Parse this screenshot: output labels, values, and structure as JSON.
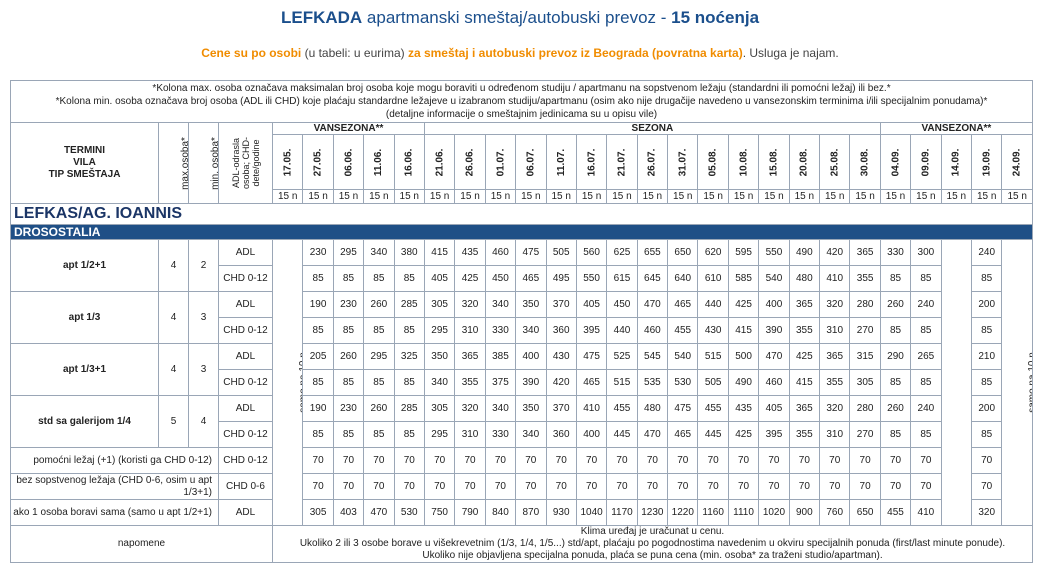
{
  "header": {
    "title_bold": "LEFKADA",
    "title_rest": " apartmanski smeštaj/autobuski prevoz - ",
    "title_nights": "15 noćenja",
    "sub_a": "Cene su po osobi",
    "sub_b": " (u tabeli: u eurima) ",
    "sub_c": "za smeštaj i autobuski prevoz iz Beograda (povratna karta)",
    "sub_d": ". Usluga je najam."
  },
  "notes": {
    "line1": "*Kolona max. osoba označava maksimalan broj osoba koje mogu boraviti u određenom studiju / apartmanu na sopstvenom ležaju (standardni ili pomoćni ležaj) ili bez.*",
    "line2": "*Kolona min. osoba označava broj osoba (ADL ili CHD) koje plaćaju standardne ležajeve u izabranom studiju/apartmanu (osim ako nije drugačije navedeno u vansezonskim terminima i/ili specijalnim ponudama)*",
    "line3": "(detaljne informacije o smeštajnim jedinicama su u opisu vile)"
  },
  "columns": {
    "termini": "TERMINI",
    "vila": "VILA",
    "tip": "TIP SMEŠTAJA",
    "max": "max.osoba*",
    "min": "min. osoba*",
    "adl_chd": "ADL-odrasla osoba; CHD-dete/godine",
    "vansezona1": "VANSEZONA**",
    "sezona": "SEZONA",
    "vansezona2": "VANSEZONA**",
    "dates": [
      "17.05.",
      "27.05.",
      "06.06.",
      "11.06.",
      "16.06.",
      "21.06.",
      "26.06.",
      "01.07.",
      "06.07.",
      "11.07.",
      "16.07.",
      "21.07.",
      "26.07.",
      "31.07.",
      "05.08.",
      "10.08.",
      "15.08.",
      "20.08.",
      "25.08.",
      "30.08.",
      "04.09.",
      "09.09.",
      "14.09.",
      "19.09.",
      "24.09."
    ],
    "nights": "15 n"
  },
  "location": "LEFKAS/AG. IOANNIS",
  "villa": "DROSOSTALIA",
  "samo_10": "samo na 10 n",
  "samo_5_10": "samo na 5 i 10 n",
  "units": [
    {
      "name": "apt 1/2+1",
      "max": "4",
      "min": "2",
      "adl": [
        "230",
        "295",
        "340",
        "380",
        "415",
        "435",
        "460",
        "475",
        "505",
        "560",
        "625",
        "655",
        "650",
        "620",
        "595",
        "550",
        "490",
        "420",
        "365",
        "330",
        "300",
        "240"
      ],
      "chd": [
        "85",
        "85",
        "85",
        "85",
        "405",
        "425",
        "450",
        "465",
        "495",
        "550",
        "615",
        "645",
        "640",
        "610",
        "585",
        "540",
        "480",
        "410",
        "355",
        "85",
        "85",
        "85"
      ]
    },
    {
      "name": "apt 1/3",
      "max": "4",
      "min": "3",
      "adl": [
        "190",
        "230",
        "260",
        "285",
        "305",
        "320",
        "340",
        "350",
        "370",
        "405",
        "450",
        "470",
        "465",
        "440",
        "425",
        "400",
        "365",
        "320",
        "280",
        "260",
        "240",
        "200"
      ],
      "chd": [
        "85",
        "85",
        "85",
        "85",
        "295",
        "310",
        "330",
        "340",
        "360",
        "395",
        "440",
        "460",
        "455",
        "430",
        "415",
        "390",
        "355",
        "310",
        "270",
        "85",
        "85",
        "85"
      ]
    },
    {
      "name": "apt 1/3+1",
      "max": "4",
      "min": "3",
      "adl": [
        "205",
        "260",
        "295",
        "325",
        "350",
        "365",
        "385",
        "400",
        "430",
        "475",
        "525",
        "545",
        "540",
        "515",
        "500",
        "470",
        "425",
        "365",
        "315",
        "290",
        "265",
        "210"
      ],
      "chd": [
        "85",
        "85",
        "85",
        "85",
        "340",
        "355",
        "375",
        "390",
        "420",
        "465",
        "515",
        "535",
        "530",
        "505",
        "490",
        "460",
        "415",
        "355",
        "305",
        "85",
        "85",
        "85"
      ]
    },
    {
      "name": "std sa galerijom 1/4",
      "max": "5",
      "min": "4",
      "adl": [
        "190",
        "230",
        "260",
        "285",
        "305",
        "320",
        "340",
        "350",
        "370",
        "410",
        "455",
        "480",
        "475",
        "455",
        "435",
        "405",
        "365",
        "320",
        "280",
        "260",
        "240",
        "200"
      ],
      "chd": [
        "85",
        "85",
        "85",
        "85",
        "295",
        "310",
        "330",
        "340",
        "360",
        "400",
        "445",
        "470",
        "465",
        "445",
        "425",
        "395",
        "355",
        "310",
        "270",
        "85",
        "85",
        "85"
      ]
    }
  ],
  "labels": {
    "adl": "ADL",
    "chd012": "CHD 0-12",
    "chd06": "CHD 0-6"
  },
  "extras": [
    {
      "label": "pomoćni ležaj (+1) (koristi ga CHD 0-12)",
      "type": "CHD 0-12",
      "values": [
        "70",
        "70",
        "70",
        "70",
        "70",
        "70",
        "70",
        "70",
        "70",
        "70",
        "70",
        "70",
        "70",
        "70",
        "70",
        "70",
        "70",
        "70",
        "70",
        "70",
        "70",
        "70"
      ]
    },
    {
      "label": "bez sopstvenog ležaja (CHD 0-6, osim u apt 1/3+1)",
      "type": "CHD 0-6",
      "values": [
        "70",
        "70",
        "70",
        "70",
        "70",
        "70",
        "70",
        "70",
        "70",
        "70",
        "70",
        "70",
        "70",
        "70",
        "70",
        "70",
        "70",
        "70",
        "70",
        "70",
        "70",
        "70"
      ]
    },
    {
      "label": "ako 1 osoba boravi sama (samo u apt 1/2+1)",
      "type": "ADL",
      "values": [
        "305",
        "403",
        "470",
        "530",
        "750",
        "790",
        "840",
        "870",
        "930",
        "1040",
        "1170",
        "1230",
        "1220",
        "1160",
        "1110",
        "1020",
        "900",
        "760",
        "650",
        "455",
        "410",
        "320"
      ]
    }
  ],
  "napomene": {
    "label": "napomene",
    "line1": "Klima uređaj je uračunat u cenu.",
    "line2": "Ukoliko 2 ili 3 osobe borave u višekrevetnim (1/3, 1/4, 1/5...) std/apt, plaćaju po pogodnostima navedenim u okviru specijalnih ponuda (first/last minute ponude).",
    "line3": "Ukoliko nije objavljena specijalna ponuda, plaća se puna cena (min. osoba* za traženi studio/apartman)."
  }
}
